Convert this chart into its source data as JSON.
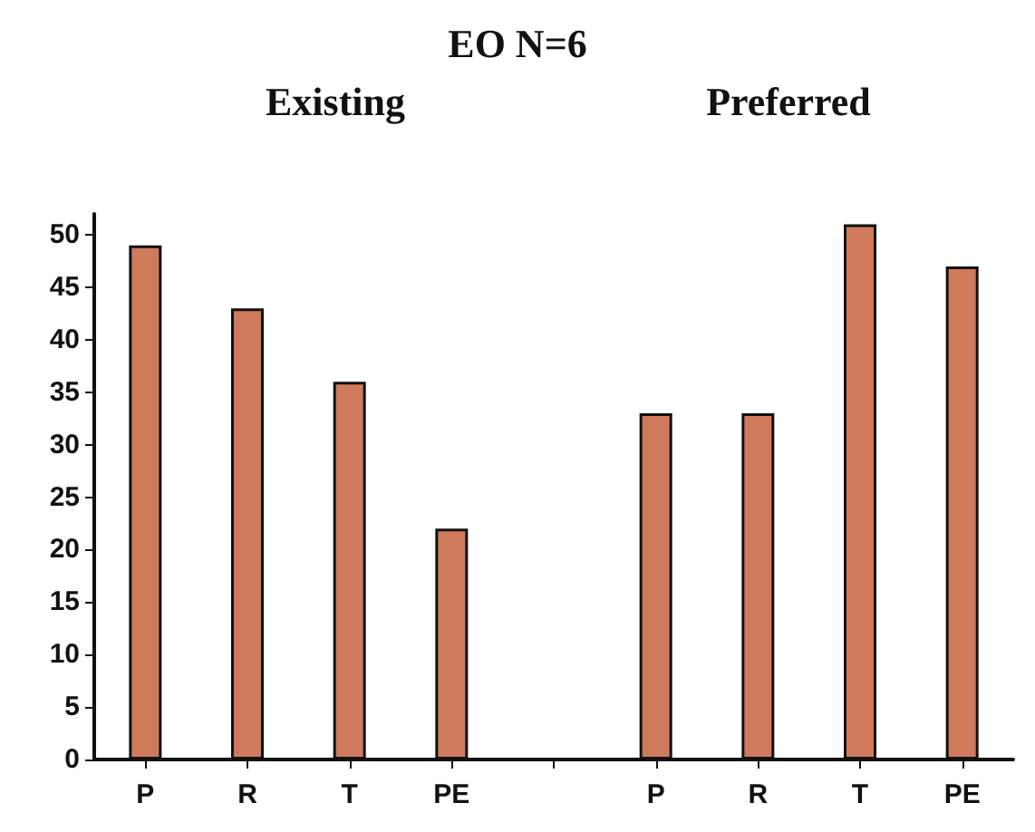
{
  "chart_data": {
    "type": "bar",
    "title": "EO N=6",
    "annotations": [
      "Existing",
      "Preferred"
    ],
    "categories": [
      "P",
      "R",
      "T",
      "PE",
      null,
      "P",
      "R",
      "T",
      "PE"
    ],
    "values": [
      49,
      43,
      36,
      22,
      null,
      33,
      33,
      51,
      47
    ],
    "color": "#d07a5c",
    "ylim": [
      0,
      52
    ],
    "yticks": [
      0,
      5,
      10,
      15,
      20,
      25,
      30,
      35,
      40,
      45,
      50
    ],
    "grid": false
  }
}
